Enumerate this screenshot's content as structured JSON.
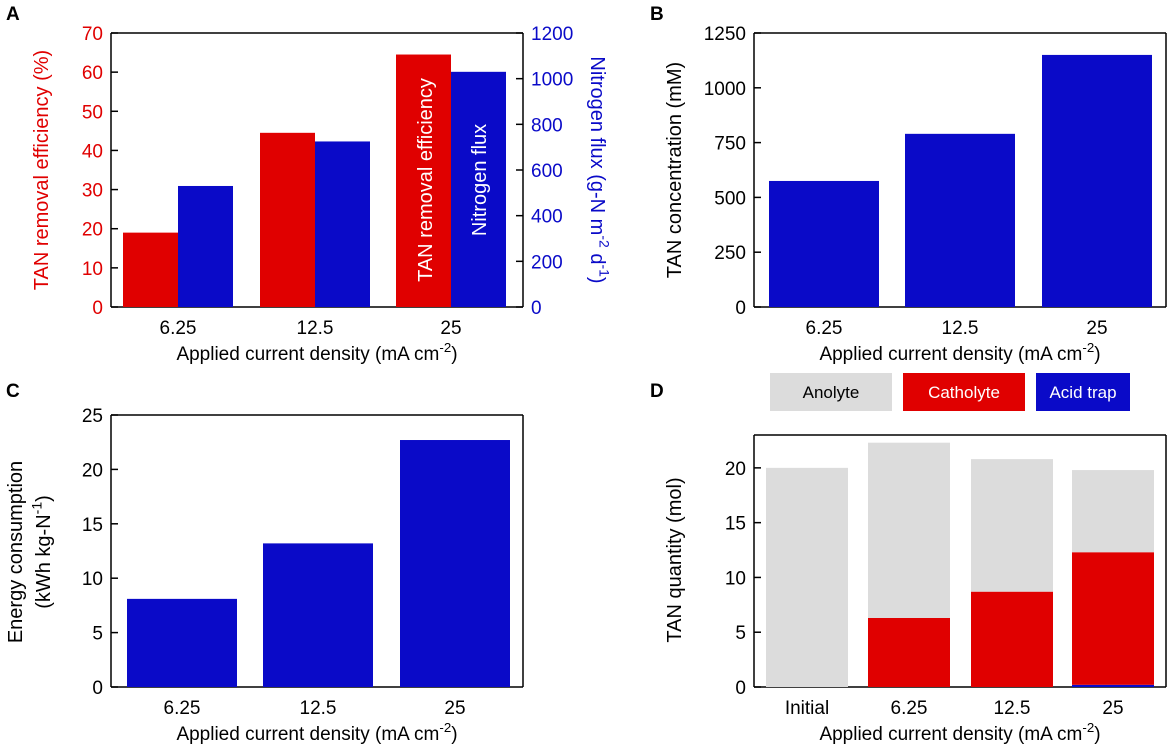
{
  "figure": {
    "colors": {
      "red": "#e00000",
      "blue": "#0a0ac8",
      "grey": "#dcdcdc",
      "axis": "#000000"
    }
  },
  "chart_data": [
    {
      "panel": "A",
      "type": "bar",
      "categories": [
        "6.25",
        "12.5",
        "25"
      ],
      "series": [
        {
          "name": "TAN removal efficiency",
          "axis": "left",
          "color": "#e00000",
          "values": [
            19,
            44.5,
            64.5
          ]
        },
        {
          "name": "Nitrogen flux",
          "axis": "right",
          "color": "#0a0ac8",
          "values": [
            530,
            725,
            1030
          ]
        }
      ],
      "xlabel": "Applied current density (mA cm",
      "xlabel_sup": "-2",
      "xlabel_end": ")",
      "ylabel": "TAN removal efficiency (%)",
      "ylabel_right": "Nitrogen flux (g-N m",
      "ylabel_right_sup1": "-2",
      "ylabel_right_mid": " d",
      "ylabel_right_sup2": "-1",
      "ylabel_right_end": ")",
      "ylim": [
        0,
        70
      ],
      "yticks": [
        "0",
        "10",
        "20",
        "30",
        "40",
        "50",
        "60",
        "70"
      ],
      "ylim_right": [
        0,
        1200
      ],
      "yticks_right": [
        "0",
        "200",
        "400",
        "600",
        "800",
        "1000",
        "1200"
      ],
      "bar_labels": [
        "TAN removal efficiency",
        "Nitrogen flux"
      ]
    },
    {
      "panel": "B",
      "type": "bar",
      "categories": [
        "6.25",
        "12.5",
        "25"
      ],
      "series": [
        {
          "name": "TAN concentration",
          "color": "#0a0ac8",
          "values": [
            575,
            790,
            1150
          ]
        }
      ],
      "xlabel": "Applied current density (mA cm",
      "xlabel_sup": "-2",
      "xlabel_end": ")",
      "ylabel": "TAN concentration (mM)",
      "ylim": [
        0,
        1250
      ],
      "yticks": [
        "0",
        "250",
        "500",
        "750",
        "1000",
        "1250"
      ]
    },
    {
      "panel": "C",
      "type": "bar",
      "categories": [
        "6.25",
        "12.5",
        "25"
      ],
      "series": [
        {
          "name": "Energy consumption",
          "color": "#0a0ac8",
          "values": [
            8.1,
            13.2,
            22.7
          ]
        }
      ],
      "xlabel": "Applied current density (mA cm",
      "xlabel_sup": "-2",
      "xlabel_end": ")",
      "ylabel": "Energy  consumption",
      "ylabel2": "(kWh kg-N",
      "ylabel2_sup": "-1",
      "ylabel2_end": ")",
      "ylim": [
        0,
        25
      ],
      "yticks": [
        "0",
        "5",
        "10",
        "15",
        "20",
        "25"
      ]
    },
    {
      "panel": "D",
      "type": "bar",
      "stacked": true,
      "categories": [
        "Initial",
        "6.25",
        "12.5",
        "25"
      ],
      "series": [
        {
          "name": "Acid trap",
          "color": "#0a0ac8",
          "values": [
            0,
            0,
            0,
            0.2
          ]
        },
        {
          "name": "Catholyte",
          "color": "#e00000",
          "values": [
            0,
            6.3,
            8.7,
            12.1
          ]
        },
        {
          "name": "Anolyte",
          "color": "#dcdcdc",
          "values": [
            20,
            16,
            12.1,
            7.5
          ]
        }
      ],
      "legend": [
        "Anolyte",
        "Catholyte",
        "Acid trap"
      ],
      "legend_position": "top",
      "xlabel": "Applied current density (mA cm",
      "xlabel_sup": "-2",
      "xlabel_end": ")",
      "ylabel": "TAN quantity (mol)",
      "ylim": [
        0,
        23
      ],
      "yticks": [
        "0",
        "5",
        "10",
        "15",
        "20"
      ]
    }
  ],
  "panel_letters": [
    "A",
    "B",
    "C",
    "D"
  ]
}
